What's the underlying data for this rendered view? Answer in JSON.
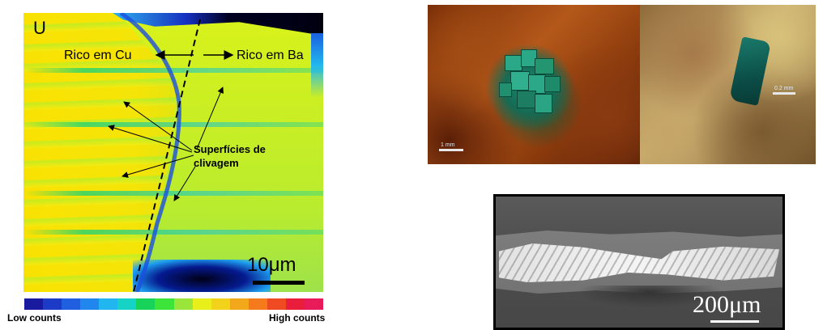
{
  "map_panel": {
    "element_label": "U",
    "left_region_label": "Rico em Cu",
    "right_region_label": "Rico em Ba",
    "cleavage_label_line1": "Superfícies de",
    "cleavage_label_line2": "clivagem",
    "scale_label": "10μm"
  },
  "color_scale": {
    "low_label": "Low counts",
    "high_label": "High counts",
    "colors": [
      "#1a1aa0",
      "#1c3cc8",
      "#1f5fe0",
      "#2286ef",
      "#22b6f0",
      "#16d3c8",
      "#18d35a",
      "#3de43a",
      "#9ae53a",
      "#e8ef1a",
      "#f2d21a",
      "#f3a81c",
      "#f47a1c",
      "#ef4a22",
      "#e81e3a",
      "#e81a5a"
    ]
  },
  "photos": {
    "photo_a_scale": "1 mm",
    "photo_b_scale": "0.2 mm"
  },
  "sem_panel": {
    "scale_label": "200μm"
  }
}
